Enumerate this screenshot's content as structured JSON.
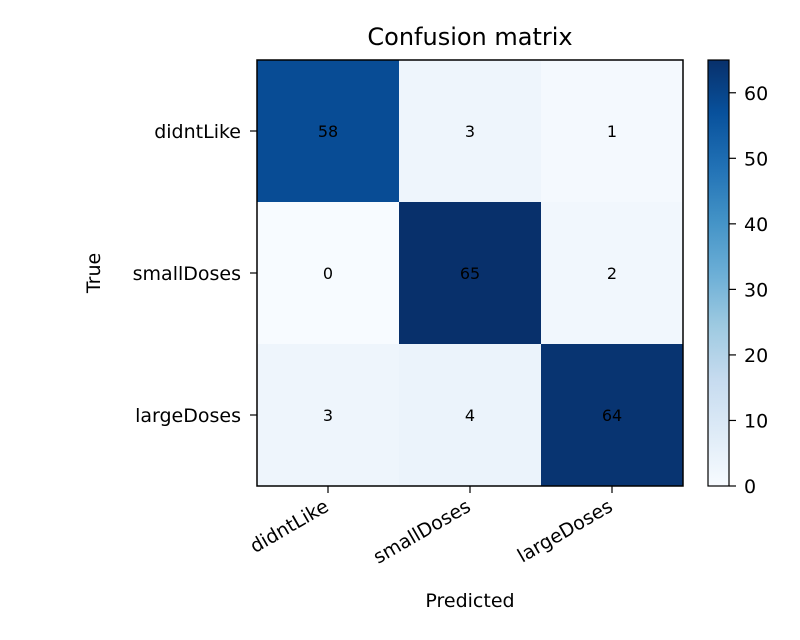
{
  "chart_data": {
    "type": "heatmap",
    "title": "Confusion matrix",
    "xlabel": "Predicted",
    "ylabel": "True",
    "x_categories": [
      "didntLike",
      "smallDoses",
      "largeDoses"
    ],
    "y_categories": [
      "didntLike",
      "smallDoses",
      "largeDoses"
    ],
    "matrix": [
      [
        58,
        3,
        1
      ],
      [
        0,
        65,
        2
      ],
      [
        3,
        4,
        64
      ]
    ],
    "colormap": "Blues",
    "value_range": [
      0,
      65
    ],
    "colorbar_ticks": [
      0,
      10,
      20,
      30,
      40,
      50,
      60
    ],
    "colors": {
      "low": "#f7fbff",
      "high": "#08306b"
    }
  }
}
